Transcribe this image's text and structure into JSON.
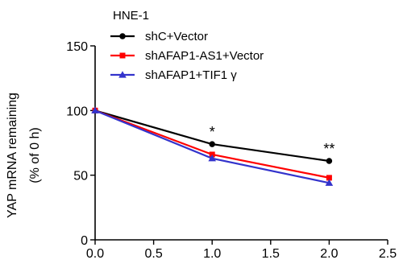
{
  "chart_data": {
    "type": "line",
    "title": "HNE-1",
    "xlabel": "",
    "ylabel_lines": [
      "YAP mRNA remaining",
      "(% of 0 h)"
    ],
    "xlim": [
      0,
      2.5
    ],
    "ylim": [
      0,
      150
    ],
    "x_ticks": [
      0,
      0.5,
      1.0,
      1.5,
      2.0,
      2.5
    ],
    "x_tick_labels": [
      "0.0",
      "0.5",
      "1.0",
      "1.5",
      "2.0",
      "2.5"
    ],
    "y_ticks": [
      0,
      50,
      100,
      150
    ],
    "y_tick_labels": [
      "0",
      "50",
      "100",
      "150"
    ],
    "grid": false,
    "legend_position": "top-left",
    "series": [
      {
        "name": "shC+Vector",
        "color": "#000000",
        "marker": "circle",
        "x": [
          0,
          1,
          2
        ],
        "y": [
          100,
          74,
          61
        ]
      },
      {
        "name": "shAFAP1-AS1+Vector",
        "color": "#ff0000",
        "marker": "square",
        "x": [
          0,
          1,
          2
        ],
        "y": [
          100,
          66,
          48
        ]
      },
      {
        "name": "shAFAP1+TIF1 γ",
        "color": "#3333cc",
        "marker": "triangle",
        "x": [
          0,
          1,
          2
        ],
        "y": [
          100,
          63,
          44
        ]
      }
    ],
    "annotations": [
      {
        "text": "*",
        "x": 1,
        "y": 74
      },
      {
        "text": "**",
        "x": 2,
        "y": 61
      }
    ]
  }
}
